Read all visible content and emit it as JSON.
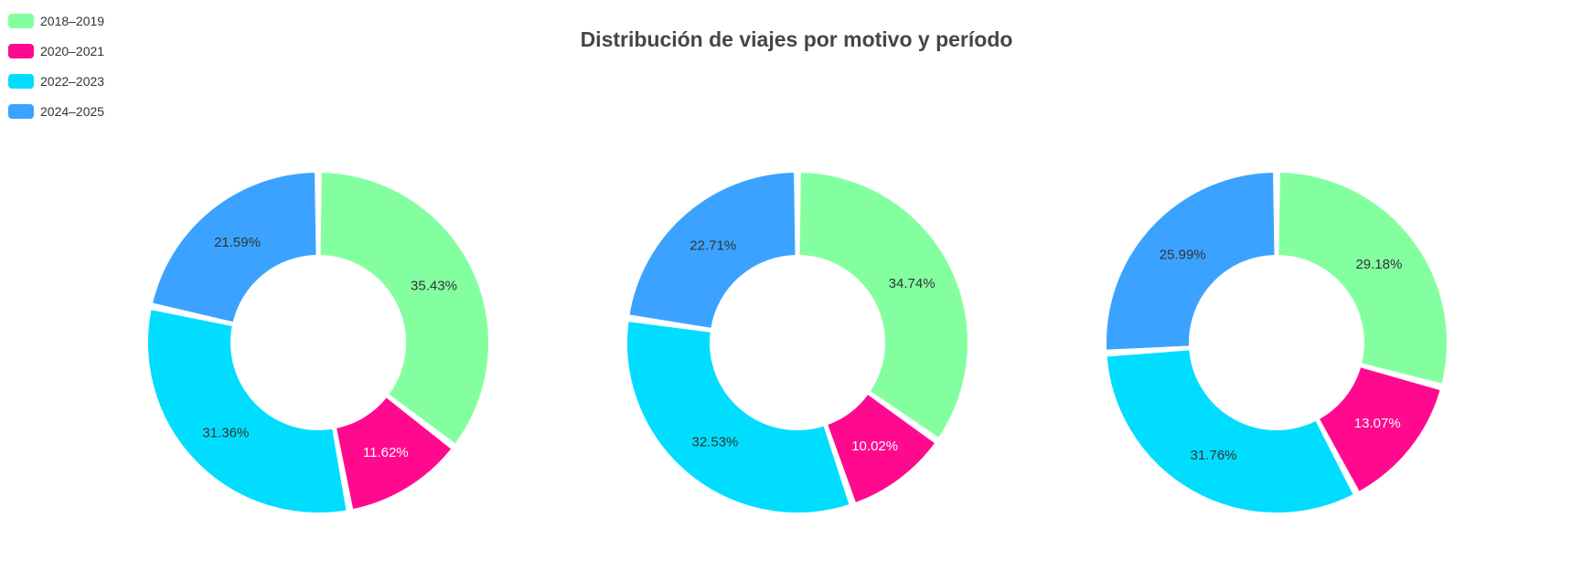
{
  "chart_data": {
    "type": "pie",
    "title": "Distribución de viajes por motivo y período",
    "legend_position": "top-left",
    "legend": [
      {
        "label": "2018–2019",
        "color": "#84FFA0"
      },
      {
        "label": "2020–2021",
        "color": "#FF0A8E"
      },
      {
        "label": "2022–2023",
        "color": "#00DDFF"
      },
      {
        "label": "2024–2025",
        "color": "#3BA3FF"
      }
    ],
    "series": [
      {
        "values": [
          35.43,
          11.62,
          31.36,
          21.59
        ],
        "labels": [
          "35.43%",
          "11.62%",
          "31.36%",
          "21.59%"
        ]
      },
      {
        "values": [
          34.74,
          10.02,
          32.53,
          22.71
        ],
        "labels": [
          "34.74%",
          "10.02%",
          "32.53%",
          "22.71%"
        ]
      },
      {
        "values": [
          29.18,
          13.07,
          31.76,
          25.99
        ],
        "labels": [
          "29.18%",
          "13.07%",
          "31.76%",
          "25.99%"
        ]
      }
    ],
    "label_colors": [
      "#333333",
      "#ffffff",
      "#333333",
      "#333333"
    ]
  }
}
